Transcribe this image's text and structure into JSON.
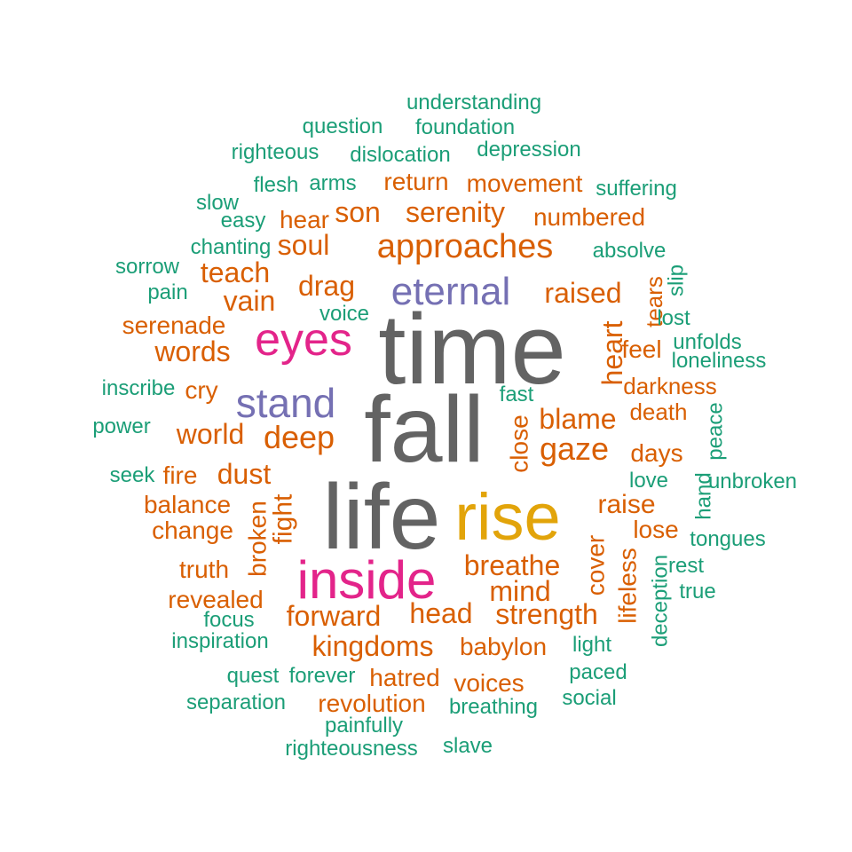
{
  "chart_data": {
    "type": "wordcloud",
    "title": "",
    "palette": {
      "gray": "#636363",
      "gold": "#E2A40A",
      "magenta": "#E3248A",
      "purple": "#7570B3",
      "orange": "#D95F02",
      "teal": "#1B9E77"
    },
    "words": [
      {
        "text": "time",
        "color": "gray"
      },
      {
        "text": "fall",
        "color": "gray"
      },
      {
        "text": "life",
        "color": "gray"
      },
      {
        "text": "rise",
        "color": "gold"
      },
      {
        "text": "inside",
        "color": "magenta"
      },
      {
        "text": "eyes",
        "color": "magenta"
      },
      {
        "text": "eternal",
        "color": "purple"
      },
      {
        "text": "stand",
        "color": "purple"
      },
      {
        "text": "approaches",
        "color": "orange"
      },
      {
        "text": "serenity",
        "color": "orange"
      },
      {
        "text": "son",
        "color": "orange"
      },
      {
        "text": "soul",
        "color": "orange"
      },
      {
        "text": "hear",
        "color": "orange"
      },
      {
        "text": "return",
        "color": "orange"
      },
      {
        "text": "movement",
        "color": "orange"
      },
      {
        "text": "numbered",
        "color": "orange"
      },
      {
        "text": "teach",
        "color": "orange"
      },
      {
        "text": "drag",
        "color": "orange"
      },
      {
        "text": "vain",
        "color": "orange"
      },
      {
        "text": "raised",
        "color": "orange"
      },
      {
        "text": "tears",
        "color": "orange"
      },
      {
        "text": "heart",
        "color": "orange"
      },
      {
        "text": "serenade",
        "color": "orange"
      },
      {
        "text": "words",
        "color": "orange"
      },
      {
        "text": "feel",
        "color": "orange"
      },
      {
        "text": "darkness",
        "color": "orange"
      },
      {
        "text": "cry",
        "color": "orange"
      },
      {
        "text": "deep",
        "color": "orange"
      },
      {
        "text": "world",
        "color": "orange"
      },
      {
        "text": "blame",
        "color": "orange"
      },
      {
        "text": "death",
        "color": "orange"
      },
      {
        "text": "gaze",
        "color": "orange"
      },
      {
        "text": "close",
        "color": "orange"
      },
      {
        "text": "days",
        "color": "orange"
      },
      {
        "text": "fire",
        "color": "orange"
      },
      {
        "text": "dust",
        "color": "orange"
      },
      {
        "text": "balance",
        "color": "orange"
      },
      {
        "text": "fight",
        "color": "orange"
      },
      {
        "text": "broken",
        "color": "orange"
      },
      {
        "text": "change",
        "color": "orange"
      },
      {
        "text": "raise",
        "color": "orange"
      },
      {
        "text": "lose",
        "color": "orange"
      },
      {
        "text": "truth",
        "color": "orange"
      },
      {
        "text": "breathe",
        "color": "orange"
      },
      {
        "text": "cover",
        "color": "orange"
      },
      {
        "text": "lifeless",
        "color": "orange"
      },
      {
        "text": "revealed",
        "color": "orange"
      },
      {
        "text": "mind",
        "color": "orange"
      },
      {
        "text": "forward",
        "color": "orange"
      },
      {
        "text": "head",
        "color": "orange"
      },
      {
        "text": "strength",
        "color": "orange"
      },
      {
        "text": "kingdoms",
        "color": "orange"
      },
      {
        "text": "babylon",
        "color": "orange"
      },
      {
        "text": "hatred",
        "color": "orange"
      },
      {
        "text": "voices",
        "color": "orange"
      },
      {
        "text": "revolution",
        "color": "orange"
      },
      {
        "text": "understanding",
        "color": "teal"
      },
      {
        "text": "question",
        "color": "teal"
      },
      {
        "text": "foundation",
        "color": "teal"
      },
      {
        "text": "righteous",
        "color": "teal"
      },
      {
        "text": "dislocation",
        "color": "teal"
      },
      {
        "text": "depression",
        "color": "teal"
      },
      {
        "text": "flesh",
        "color": "teal"
      },
      {
        "text": "arms",
        "color": "teal"
      },
      {
        "text": "suffering",
        "color": "teal"
      },
      {
        "text": "slow",
        "color": "teal"
      },
      {
        "text": "easy",
        "color": "teal"
      },
      {
        "text": "chanting",
        "color": "teal"
      },
      {
        "text": "absolve",
        "color": "teal"
      },
      {
        "text": "sorrow",
        "color": "teal"
      },
      {
        "text": "slip",
        "color": "teal"
      },
      {
        "text": "pain",
        "color": "teal"
      },
      {
        "text": "voice",
        "color": "teal"
      },
      {
        "text": "lost",
        "color": "teal"
      },
      {
        "text": "unfolds",
        "color": "teal"
      },
      {
        "text": "loneliness",
        "color": "teal"
      },
      {
        "text": "inscribe",
        "color": "teal"
      },
      {
        "text": "fast",
        "color": "teal"
      },
      {
        "text": "power",
        "color": "teal"
      },
      {
        "text": "peace",
        "color": "teal"
      },
      {
        "text": "seek",
        "color": "teal"
      },
      {
        "text": "love",
        "color": "teal"
      },
      {
        "text": "hand",
        "color": "teal"
      },
      {
        "text": "unbroken",
        "color": "teal"
      },
      {
        "text": "tongues",
        "color": "teal"
      },
      {
        "text": "rest",
        "color": "teal"
      },
      {
        "text": "deception",
        "color": "teal"
      },
      {
        "text": "true",
        "color": "teal"
      },
      {
        "text": "focus",
        "color": "teal"
      },
      {
        "text": "inspiration",
        "color": "teal"
      },
      {
        "text": "light",
        "color": "teal"
      },
      {
        "text": "quest",
        "color": "teal"
      },
      {
        "text": "forever",
        "color": "teal"
      },
      {
        "text": "paced",
        "color": "teal"
      },
      {
        "text": "separation",
        "color": "teal"
      },
      {
        "text": "social",
        "color": "teal"
      },
      {
        "text": "breathing",
        "color": "teal"
      },
      {
        "text": "painfully",
        "color": "teal"
      },
      {
        "text": "righteousness",
        "color": "teal"
      },
      {
        "text": "slave",
        "color": "teal"
      }
    ]
  }
}
